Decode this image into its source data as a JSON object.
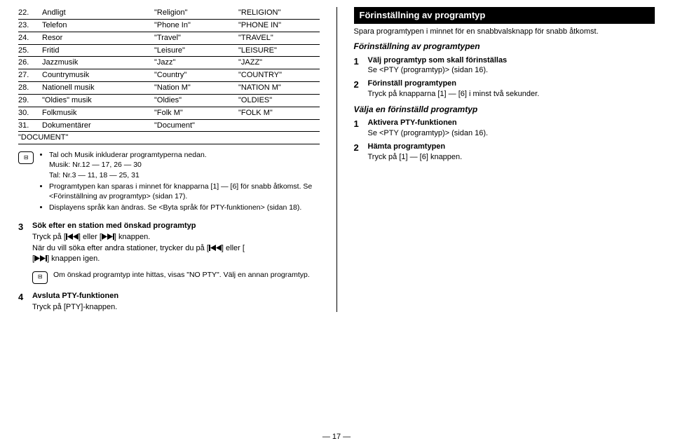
{
  "table": {
    "rows": [
      {
        "n": "22.",
        "a": "Andligt",
        "b": "\"Religion\"",
        "c": "\"RELIGION\""
      },
      {
        "n": "23.",
        "a": "Telefon",
        "b": "\"Phone In\"",
        "c": "\"PHONE IN\""
      },
      {
        "n": "24.",
        "a": "Resor",
        "b": "\"Travel\"",
        "c": "\"TRAVEL\""
      },
      {
        "n": "25.",
        "a": "Fritid",
        "b": "\"Leisure\"",
        "c": "\"LEISURE\""
      },
      {
        "n": "26.",
        "a": "Jazzmusik",
        "b": "\"Jazz\"",
        "c": "\"JAZZ\""
      },
      {
        "n": "27.",
        "a": "Countrymusik",
        "b": "\"Country\"",
        "c": "\"COUNTRY\""
      },
      {
        "n": "28.",
        "a": "Nationell musik",
        "b": "\"Nation M\"",
        "c": "\"NATION M\""
      },
      {
        "n": "29.",
        "a": "\"Oldies\" musik",
        "b": "\"Oldies\"",
        "c": "\"OLDIES\""
      },
      {
        "n": "30.",
        "a": "Folkmusik",
        "b": "\"Folk M\"",
        "c": "\"FOLK M\""
      },
      {
        "n": "31.",
        "a": "Dokumentärer",
        "b": "\"Document\"",
        "c": ""
      }
    ],
    "docrow": "\"DOCUMENT\""
  },
  "notes1": {
    "l1": "Tal och Musik inkluderar programtyperna nedan.",
    "l2": "Musik: Nr.12 — 17, 26 — 30",
    "l3": "Tal: Nr.3 — 11, 18 — 25, 31",
    "l4": "Programtypen kan sparas i minnet för knapparna [1] — [6] för snabb åtkomst. Se <Förinställning av programtyp> (sidan 17).",
    "l5": "Displayens språk kan ändras. Se <Byta språk för PTY-funktionen> (sidan 18)."
  },
  "step3": {
    "title": "Sök efter en station med önskad programtyp",
    "p1a": "Tryck på [",
    "p1b": "] eller [",
    "p1c": "] knappen.",
    "p2a": "När du vill söka efter andra stationer, trycker du på [",
    "p2b": "] eller [",
    "p2c": "] knappen igen.",
    "note": "Om önskad programtyp inte hittas, visas \"NO PTY\". Välj en annan programtyp."
  },
  "step4": {
    "title": "Avsluta PTY-funktionen",
    "p": "Tryck på [PTY]-knappen."
  },
  "right": {
    "hd": "Förinställning av programtyp",
    "intro": "Spara programtypen i minnet för en snabbvalsknapp för snabb åtkomst.",
    "sub1": "Förinställning av programtypen",
    "s1t": "Välj programtyp som skall förinställas",
    "s1p": "Se <PTY (programtyp)> (sidan 16).",
    "s2t": "Förinställ programtypen",
    "s2p": "Tryck på knapparna [1] — [6] i minst två sekunder.",
    "sub2": "Välja en förinställd programtyp",
    "r1t": "Aktivera PTY-funktionen",
    "r1p": "Se <PTY (programtyp)> (sidan 16).",
    "r2t": "Hämta programtypen",
    "r2p": "Tryck på [1] — [6] knappen."
  },
  "pageno": "— 17 —"
}
